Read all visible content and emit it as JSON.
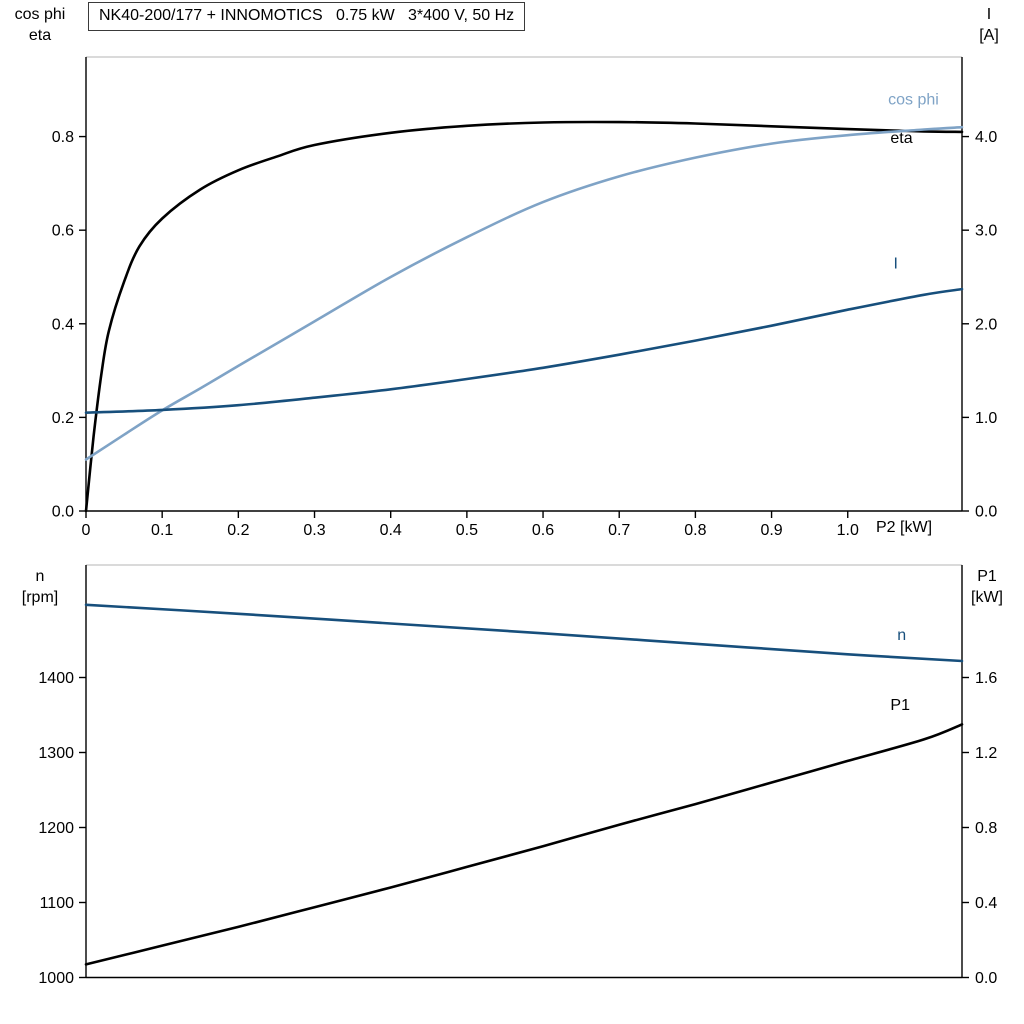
{
  "title": "NK40-200/177 + INNOMOTICS   0.75 kW   3*400 V, 50 Hz",
  "chart_data": [
    {
      "type": "line",
      "x_axis": {
        "label": "P2 [kW]",
        "range": [
          0,
          1.15
        ],
        "ticks": [
          0,
          0.1,
          0.2,
          0.3,
          0.4,
          0.5,
          0.6,
          0.7,
          0.8,
          0.9,
          1.0
        ],
        "tick_labels": [
          "0",
          "0.1",
          "0.2",
          "0.3",
          "0.4",
          "0.5",
          "0.6",
          "0.7",
          "0.8",
          "0.9",
          "1.0"
        ]
      },
      "left_axis": {
        "label_lines": [
          "cos phi",
          "eta"
        ],
        "range": [
          0,
          0.97
        ],
        "ticks": [
          0,
          0.2,
          0.4,
          0.6,
          0.8
        ],
        "tick_labels": [
          "0.0",
          "0.2",
          "0.4",
          "0.6",
          "0.8"
        ]
      },
      "right_axis": {
        "label_lines": [
          "I",
          "[A]"
        ],
        "range": [
          0,
          4.85
        ],
        "ticks": [
          0,
          1,
          2,
          3,
          4
        ],
        "tick_labels": [
          "0.0",
          "1.0",
          "2.0",
          "3.0",
          "4.0"
        ]
      },
      "series": [
        {
          "name": "eta",
          "label": "eta",
          "color": "#000000",
          "axis": "left",
          "label_x": 1.056,
          "label_y": 0.786,
          "x": [
            0,
            0.01,
            0.02,
            0.03,
            0.05,
            0.07,
            0.1,
            0.15,
            0.2,
            0.25,
            0.3,
            0.4,
            0.5,
            0.6,
            0.7,
            0.8,
            0.9,
            1.0,
            1.1,
            1.15
          ],
          "y": [
            0,
            0.16,
            0.29,
            0.385,
            0.49,
            0.565,
            0.625,
            0.687,
            0.728,
            0.757,
            0.782,
            0.808,
            0.823,
            0.83,
            0.831,
            0.828,
            0.822,
            0.816,
            0.811,
            0.81
          ]
        },
        {
          "name": "cos phi",
          "label": "cos phi",
          "color": "#7FA3C6",
          "axis": "left",
          "label_x": 1.053,
          "label_y": 0.868,
          "x": [
            0,
            0.05,
            0.1,
            0.15,
            0.2,
            0.3,
            0.4,
            0.5,
            0.6,
            0.7,
            0.8,
            0.9,
            1.0,
            1.1,
            1.15
          ],
          "y": [
            0.11,
            0.163,
            0.215,
            0.262,
            0.31,
            0.405,
            0.5,
            0.585,
            0.66,
            0.715,
            0.755,
            0.785,
            0.803,
            0.815,
            0.82
          ]
        },
        {
          "name": "I",
          "label": "I",
          "color": "#174F7C",
          "axis": "right",
          "label_x": 1.06,
          "label_y": 2.59,
          "x": [
            0,
            0.1,
            0.2,
            0.3,
            0.4,
            0.5,
            0.6,
            0.7,
            0.8,
            0.9,
            1.0,
            1.1,
            1.15
          ],
          "y": [
            1.05,
            1.08,
            1.13,
            1.21,
            1.3,
            1.41,
            1.53,
            1.67,
            1.82,
            1.98,
            2.15,
            2.31,
            2.37
          ]
        }
      ]
    },
    {
      "type": "line",
      "x_axis": {
        "label": "",
        "range": [
          0,
          1.15
        ],
        "ticks": [],
        "tick_labels": []
      },
      "left_axis": {
        "label_lines": [
          "n",
          "[rpm]"
        ],
        "range": [
          1000,
          1550
        ],
        "ticks": [
          1000,
          1100,
          1200,
          1300,
          1400
        ],
        "tick_labels": [
          "1000",
          "1100",
          "1200",
          "1300",
          "1400"
        ]
      },
      "right_axis": {
        "label_lines": [
          "P1",
          "[kW]"
        ],
        "range": [
          0,
          2.2
        ],
        "ticks": [
          0,
          0.4,
          0.8,
          1.2,
          1.6
        ],
        "tick_labels": [
          "0.0",
          "0.4",
          "0.8",
          "1.2",
          "1.6"
        ]
      },
      "series": [
        {
          "name": "n",
          "label": "n",
          "color": "#174F7C",
          "axis": "left",
          "label_x": 1.065,
          "label_y": 1450,
          "x": [
            0,
            0.2,
            0.4,
            0.6,
            0.8,
            1.0,
            1.15
          ],
          "y": [
            1497,
            1485,
            1472,
            1459,
            1445,
            1431,
            1422
          ]
        },
        {
          "name": "P1",
          "label": "P1",
          "color": "#000000",
          "axis": "right",
          "label_x": 1.056,
          "label_y": 1.427,
          "x": [
            0,
            0.1,
            0.2,
            0.3,
            0.4,
            0.5,
            0.6,
            0.7,
            0.8,
            0.9,
            1.0,
            1.1,
            1.15
          ],
          "y": [
            0.07,
            0.17,
            0.27,
            0.375,
            0.48,
            0.59,
            0.7,
            0.815,
            0.925,
            1.04,
            1.155,
            1.27,
            1.35
          ]
        }
      ]
    }
  ]
}
